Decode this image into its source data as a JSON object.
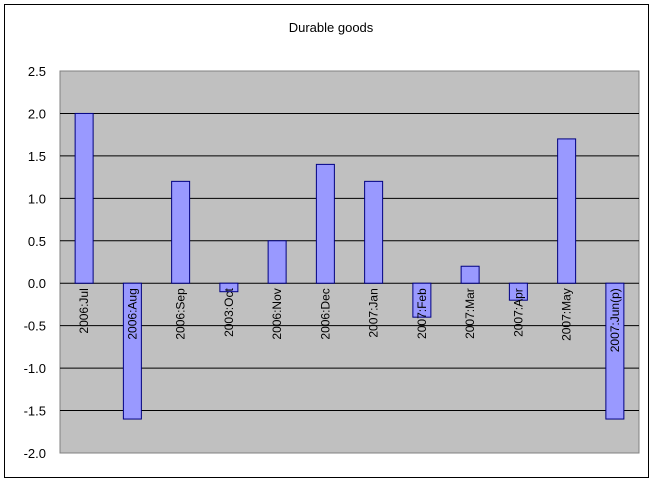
{
  "chart_data": {
    "type": "bar",
    "title": "Durable goods",
    "xlabel": "",
    "ylabel": "",
    "categories": [
      "2006:Jul",
      "2006:Aug",
      "2006:Sep",
      "2003:Oct",
      "2006:Nov",
      "2006:Dec",
      "2007:Jan",
      "2007:Feb",
      "2007:Mar",
      "2007:Apr",
      "2007:May",
      "2007:Jun(p)"
    ],
    "values": [
      2.0,
      -1.6,
      1.2,
      -0.1,
      0.5,
      1.4,
      1.2,
      -0.4,
      0.2,
      -0.2,
      1.7,
      -1.6
    ],
    "ylim": [
      -2.0,
      2.5
    ],
    "yticks": [
      "2.5",
      "2.0",
      "1.5",
      "1.0",
      "0.5",
      "0.0",
      "-0.5",
      "-1.0",
      "-1.5",
      "-2.0"
    ],
    "grid": true,
    "legend": "none",
    "colors": {
      "bar_fill": "#9999ff",
      "bar_stroke": "#000080",
      "plot_background": "#c0c0c0",
      "gridline": "#000000"
    }
  }
}
